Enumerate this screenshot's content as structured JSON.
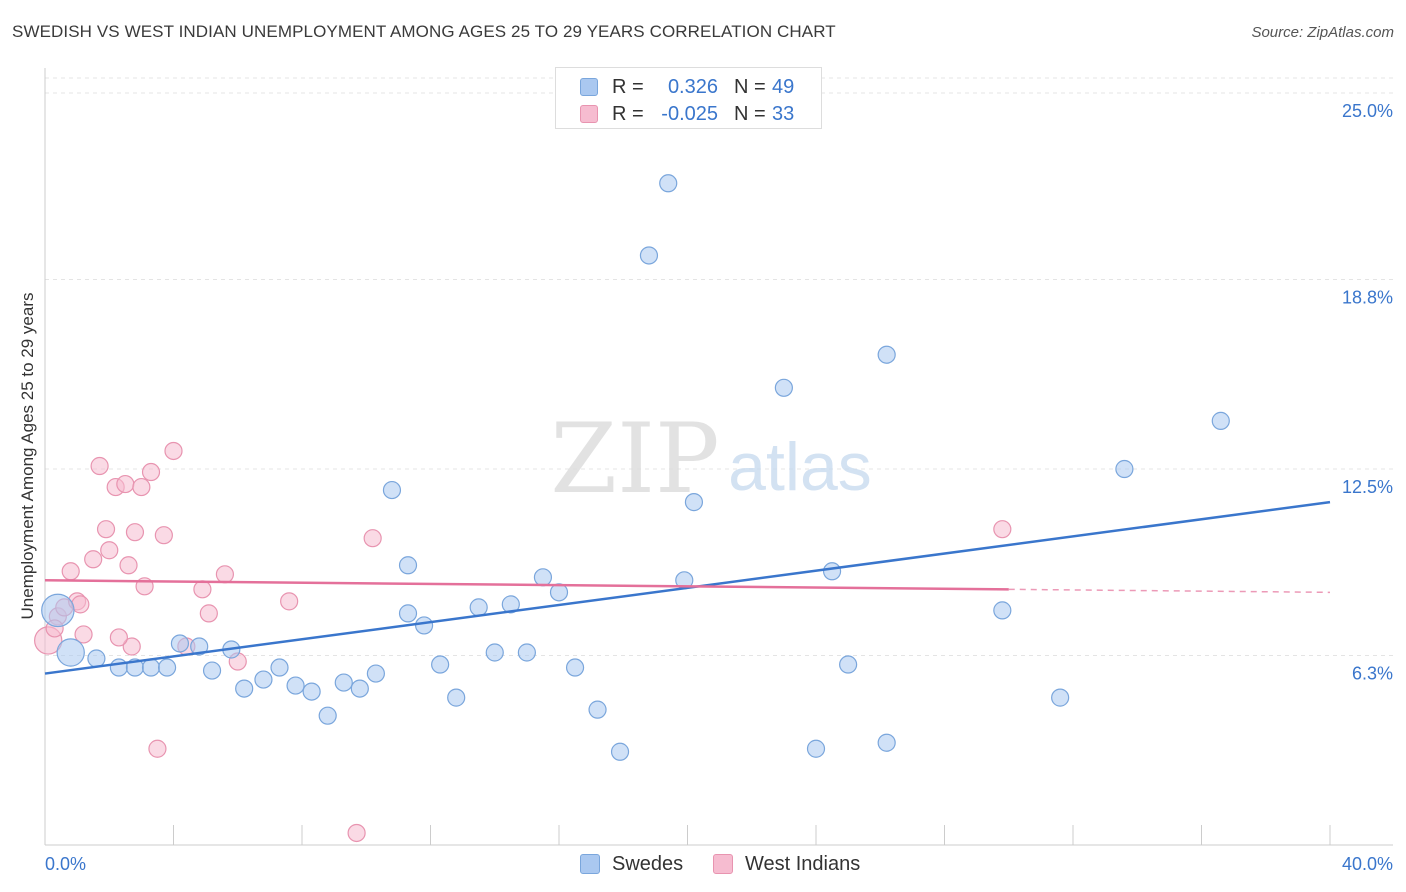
{
  "chart_data": {
    "type": "scatter",
    "title": "SWEDISH VS WEST INDIAN UNEMPLOYMENT AMONG AGES 25 TO 29 YEARS CORRELATION CHART",
    "source": "Source: ZipAtlas.com",
    "xlabel": "",
    "ylabel": "Unemployment Among Ages 25 to 29 years",
    "xlim": [
      0,
      40
    ],
    "ylim": [
      0,
      25.5
    ],
    "x_tick_labels": [
      "0.0%",
      "40.0%"
    ],
    "y_ticks": [
      6.3,
      12.5,
      18.8,
      25.0
    ],
    "y_tick_labels": [
      "6.3%",
      "12.5%",
      "18.8%",
      "25.0%"
    ],
    "watermark": {
      "zip": "ZIP",
      "atlas": "atlas"
    },
    "colors": {
      "swedes_fill": "#aac8f0",
      "swedes_stroke": "#7aa6dc",
      "swedes_line": "#3a76cc",
      "westindians_fill": "#f6bcd0",
      "westindians_stroke": "#e894b0",
      "westindians_line": "#e4709a",
      "tick_text": "#3a76cc",
      "grid": "#e4e4e4"
    },
    "legend": {
      "rows": [
        {
          "r_label": "R =",
          "r_value": "0.326",
          "n_label": "N =",
          "n_value": "49"
        },
        {
          "r_label": "R =",
          "r_value": "-0.025",
          "n_label": "N =",
          "n_value": "33"
        }
      ]
    },
    "series": [
      {
        "name": "Swedes",
        "trend": {
          "x": [
            0,
            40
          ],
          "y": [
            5.7,
            11.4
          ]
        },
        "points": [
          [
            0.4,
            7.8,
            1.9
          ],
          [
            0.8,
            6.4,
            1.6
          ],
          [
            1.6,
            6.2,
            1.0
          ],
          [
            2.3,
            5.9,
            1.0
          ],
          [
            2.8,
            5.9,
            1.0
          ],
          [
            3.3,
            5.9,
            1.0
          ],
          [
            3.8,
            5.9,
            1.0
          ],
          [
            4.2,
            6.7,
            1.0
          ],
          [
            4.8,
            6.6,
            1.0
          ],
          [
            5.2,
            5.8,
            1.0
          ],
          [
            5.8,
            6.5,
            1.0
          ],
          [
            6.2,
            5.2,
            1.0
          ],
          [
            6.8,
            5.5,
            1.0
          ],
          [
            7.3,
            5.9,
            1.0
          ],
          [
            7.8,
            5.3,
            1.0
          ],
          [
            8.3,
            5.1,
            1.0
          ],
          [
            8.8,
            4.3,
            1.0
          ],
          [
            9.3,
            5.4,
            1.0
          ],
          [
            9.8,
            5.2,
            1.0
          ],
          [
            10.3,
            5.7,
            1.0
          ],
          [
            10.8,
            11.8,
            1.0
          ],
          [
            11.3,
            9.3,
            1.0
          ],
          [
            11.3,
            7.7,
            1.0
          ],
          [
            11.8,
            7.3,
            1.0
          ],
          [
            12.3,
            6.0,
            1.0
          ],
          [
            12.8,
            4.9,
            1.0
          ],
          [
            13.5,
            7.9,
            1.0
          ],
          [
            14.0,
            6.4,
            1.0
          ],
          [
            14.5,
            8.0,
            1.0
          ],
          [
            15.0,
            6.4,
            1.0
          ],
          [
            15.5,
            8.9,
            1.0
          ],
          [
            16.0,
            8.4,
            1.0
          ],
          [
            16.5,
            5.9,
            1.0
          ],
          [
            17.2,
            4.5,
            1.0
          ],
          [
            17.9,
            3.1,
            1.0
          ],
          [
            18.8,
            19.6,
            1.0
          ],
          [
            19.4,
            22.0,
            1.0
          ],
          [
            19.9,
            8.8,
            1.0
          ],
          [
            20.2,
            11.4,
            1.0
          ],
          [
            23.0,
            15.2,
            1.0
          ],
          [
            24.0,
            3.2,
            1.0
          ],
          [
            24.5,
            9.1,
            1.0
          ],
          [
            25.0,
            6.0,
            1.0
          ],
          [
            26.2,
            3.4,
            1.0
          ],
          [
            26.2,
            16.3,
            1.0
          ],
          [
            29.8,
            7.8,
            1.0
          ],
          [
            31.6,
            4.9,
            1.0
          ],
          [
            33.6,
            12.5,
            1.0
          ],
          [
            36.6,
            14.1,
            1.0
          ]
        ]
      },
      {
        "name": "West Indians",
        "trend": {
          "x": [
            0,
            30
          ],
          "y": [
            8.8,
            8.5
          ]
        },
        "dashed_extension": {
          "x": [
            30,
            40
          ],
          "y": [
            8.5,
            8.4
          ]
        },
        "points": [
          [
            0.1,
            6.8,
            1.6
          ],
          [
            0.4,
            7.6,
            1.0
          ],
          [
            0.6,
            7.9,
            1.0
          ],
          [
            0.8,
            9.1,
            1.0
          ],
          [
            1.0,
            8.1,
            1.0
          ],
          [
            1.2,
            7.0,
            1.0
          ],
          [
            1.5,
            9.5,
            1.0
          ],
          [
            1.7,
            12.6,
            1.0
          ],
          [
            1.9,
            10.5,
            1.0
          ],
          [
            2.0,
            9.8,
            1.0
          ],
          [
            2.2,
            11.9,
            1.0
          ],
          [
            2.5,
            12.0,
            1.0
          ],
          [
            2.6,
            9.3,
            1.0
          ],
          [
            2.7,
            6.6,
            1.0
          ],
          [
            2.8,
            10.4,
            1.0
          ],
          [
            3.0,
            11.9,
            1.0
          ],
          [
            3.1,
            8.6,
            1.0
          ],
          [
            3.3,
            12.4,
            1.0
          ],
          [
            3.5,
            3.2,
            1.0
          ],
          [
            3.7,
            10.3,
            1.0
          ],
          [
            4.0,
            13.1,
            1.0
          ],
          [
            4.4,
            6.6,
            1.0
          ],
          [
            4.9,
            8.5,
            1.0
          ],
          [
            5.1,
            7.7,
            1.0
          ],
          [
            5.6,
            9.0,
            1.0
          ],
          [
            6.0,
            6.1,
            1.0
          ],
          [
            7.6,
            8.1,
            1.0
          ],
          [
            9.7,
            0.4,
            1.0
          ],
          [
            10.2,
            10.2,
            1.0
          ],
          [
            29.8,
            10.5,
            1.0
          ],
          [
            0.3,
            7.2,
            1.0
          ],
          [
            1.1,
            8.0,
            1.0
          ],
          [
            2.3,
            6.9,
            1.0
          ]
        ]
      }
    ]
  }
}
